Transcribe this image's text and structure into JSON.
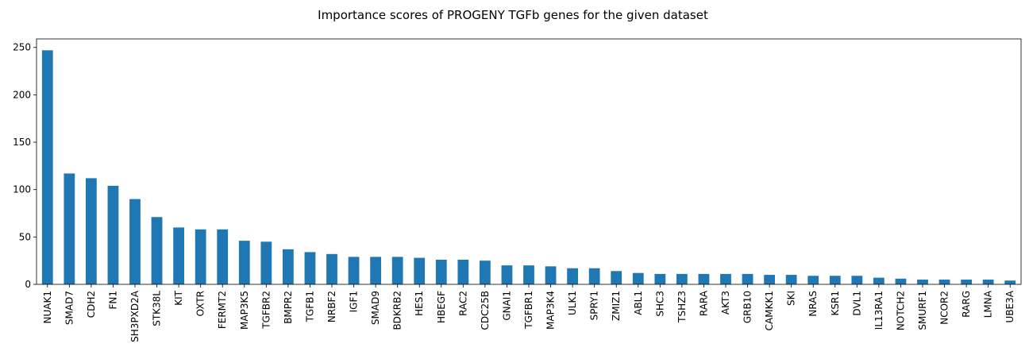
{
  "chart_data": {
    "type": "bar",
    "title": "Importance scores of PROGENY TGFb genes for the given dataset",
    "xlabel": "",
    "ylabel": "",
    "ylim": [
      0,
      259
    ],
    "yticks": [
      0,
      50,
      100,
      150,
      200,
      250
    ],
    "grid": false,
    "bar_color": "#1f77b4",
    "categories": [
      "NUAK1",
      "SMAD7",
      "CDH2",
      "FN1",
      "SH3PXD2A",
      "STK38L",
      "KIT",
      "OXTR",
      "FERMT2",
      "MAP3K5",
      "TGFBR2",
      "BMPR2",
      "TGFB1",
      "NRBF2",
      "IGF1",
      "SMAD9",
      "BDKRB2",
      "HES1",
      "HBEGF",
      "RAC2",
      "CDC25B",
      "GNAI1",
      "TGFBR1",
      "MAP3K4",
      "ULK1",
      "SPRY1",
      "ZMIZ1",
      "ABL1",
      "SHC3",
      "TSHZ3",
      "RARA",
      "AKT3",
      "GRB10",
      "CAMKK1",
      "SKI",
      "NRAS",
      "KSR1",
      "DVL1",
      "IL13RA1",
      "NOTCH2",
      "SMURF1",
      "NCOR2",
      "RARG",
      "LMNA",
      "UBE3A"
    ],
    "values": [
      247,
      117,
      112,
      104,
      90,
      71,
      60,
      58,
      58,
      46,
      45,
      37,
      34,
      32,
      29,
      29,
      29,
      28,
      26,
      26,
      25,
      20,
      20,
      19,
      17,
      17,
      14,
      12,
      11,
      11,
      11,
      11,
      11,
      10,
      10,
      9,
      9,
      9,
      7,
      6,
      5,
      5,
      5,
      5,
      4
    ]
  }
}
